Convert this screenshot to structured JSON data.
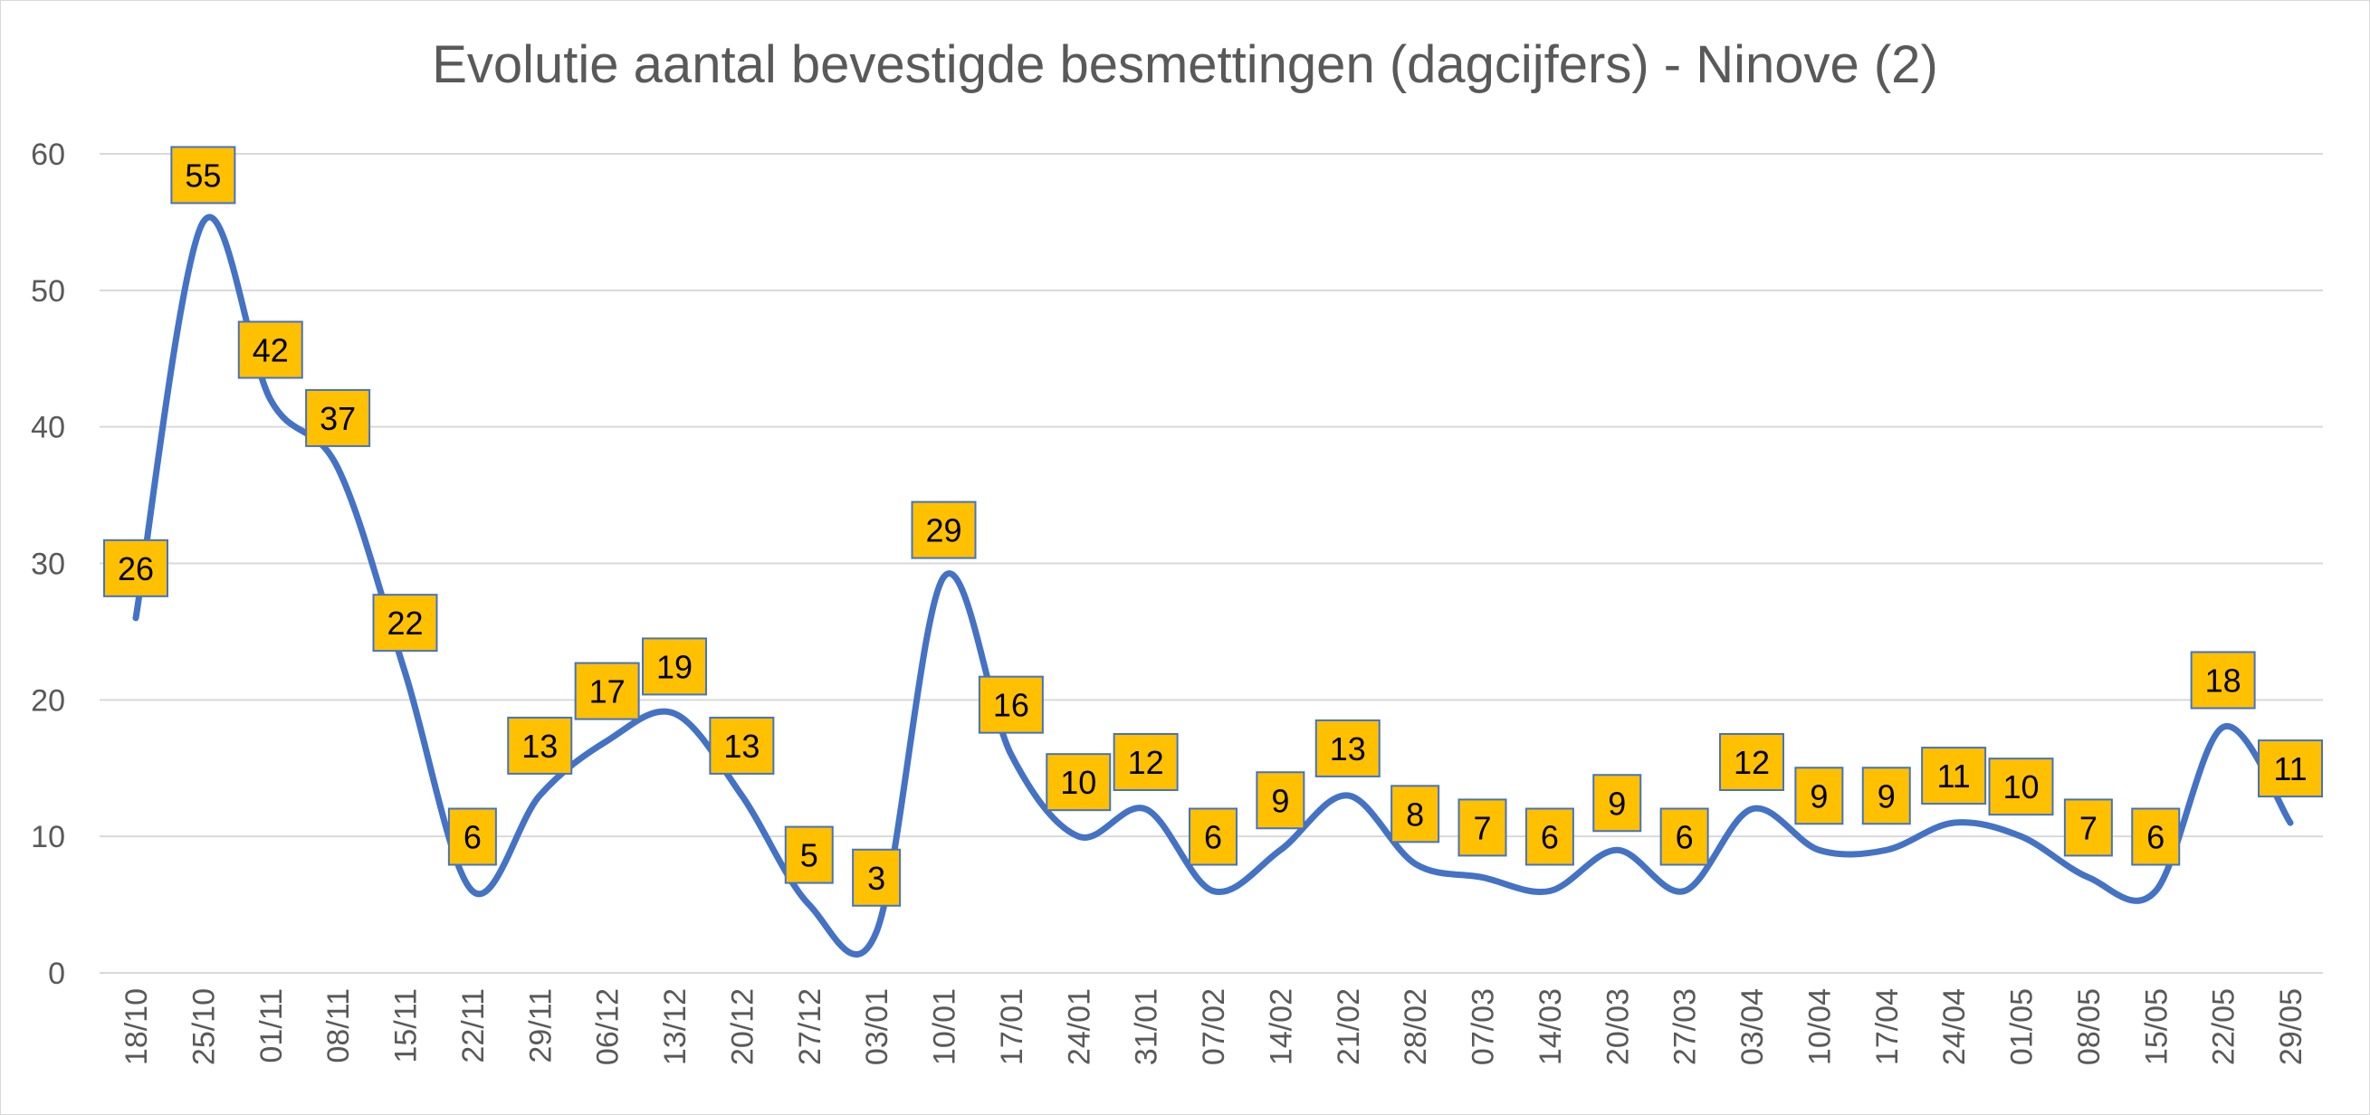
{
  "chart_data": {
    "type": "line",
    "title": "Evolutie aantal bevestigde besmettingen (dagcijfers) - Ninove (2)",
    "xlabel": "",
    "ylabel": "",
    "ylim": [
      0,
      60
    ],
    "yticks": [
      0,
      10,
      20,
      30,
      40,
      50,
      60
    ],
    "grid": true,
    "smooth": true,
    "categories": [
      "18/10",
      "25/10",
      "01/11",
      "08/11",
      "15/11",
      "22/11",
      "29/11",
      "06/12",
      "13/12",
      "20/12",
      "27/12",
      "03/01",
      "10/01",
      "17/01",
      "24/01",
      "31/01",
      "07/02",
      "14/02",
      "21/02",
      "28/02",
      "07/03",
      "14/03",
      "20/03",
      "27/03",
      "03/04",
      "10/04",
      "17/04",
      "24/04",
      "01/05",
      "08/05",
      "15/05",
      "22/05",
      "29/05"
    ],
    "series": [
      {
        "name": "Ninove",
        "color": "#4472c4",
        "label_fill": "#ffc000",
        "label_border": "#4472c4",
        "values": [
          26,
          55,
          42,
          37,
          22,
          6,
          13,
          17,
          19,
          13,
          5,
          3,
          29,
          16,
          10,
          12,
          6,
          9,
          13,
          8,
          7,
          6,
          9,
          6,
          12,
          9,
          9,
          11,
          10,
          7,
          6,
          18,
          11
        ]
      }
    ]
  }
}
